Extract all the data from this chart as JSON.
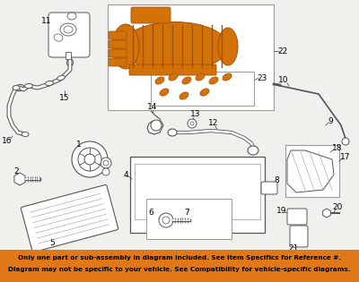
{
  "bg_color": "#f0f0ec",
  "white": "#ffffff",
  "orange": "#d4720a",
  "orange_edge": "#a05008",
  "gray": "#555555",
  "gray_light": "#999999",
  "footer_bg": "#e07818",
  "footer_text1": "Only one part or sub-assembly in diagram included. See Item Specifics for Reference #.",
  "footer_text2": "Diagram may not be specific to your vehicle. See Compatibility for vehicle-specific diagrams.",
  "lfs": 6.5,
  "lw": 0.6
}
